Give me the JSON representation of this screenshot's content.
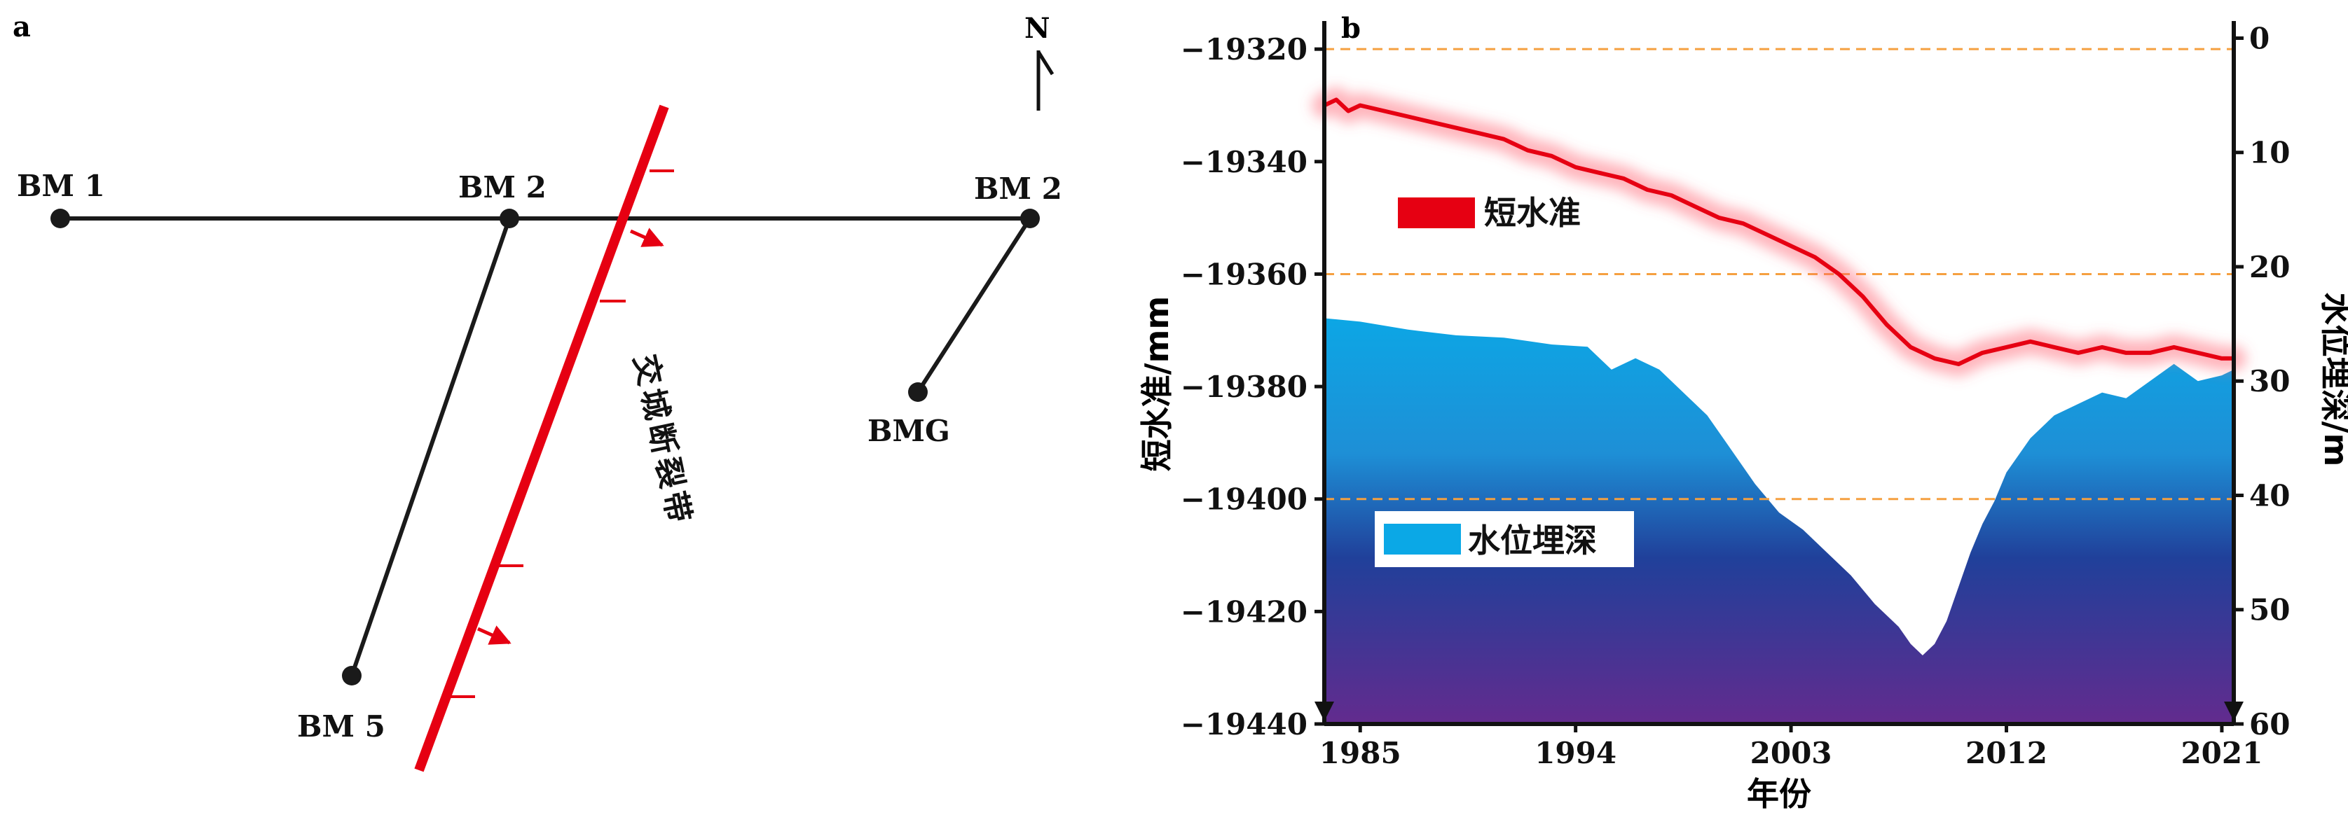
{
  "panel_a": {
    "label": "a",
    "north_label": "N",
    "points": [
      {
        "label": "BM 1"
      },
      {
        "label": "BM 2"
      },
      {
        "label": "BM 2"
      },
      {
        "label": "BMG"
      },
      {
        "label": "BM 5"
      }
    ],
    "fault_label": "交城断裂带",
    "fault_color": "#e60012"
  },
  "chart_data": {
    "type": "area",
    "panel_label": "b",
    "xlabel": "年份",
    "ylabel_left": "短水准/mm",
    "ylabel_right": "水位埋深/m",
    "x_ticks": [
      "1985",
      "1994",
      "2003",
      "2012",
      "2021"
    ],
    "xlim": [
      1983.5,
      1985,
      2021,
      2021.5
    ],
    "left_ylim": [
      -19440,
      -19315
    ],
    "left_ticks": [
      "-19320",
      "-19340",
      "-19360",
      "-19380",
      "-19400",
      "-19420",
      "-19440"
    ],
    "right_ylim": [
      60,
      -1.5
    ],
    "right_ticks": [
      "0",
      "10",
      "20",
      "30",
      "40",
      "50",
      "60"
    ],
    "right_axis_inverted": true,
    "grid_lines_left": [
      -19320,
      -19360,
      -19400
    ],
    "grid_color": "#f5a040",
    "series": [
      {
        "name": "短水准",
        "axis": "left",
        "color": "#e60012",
        "x": [
          1983.5,
          1984.0,
          1984.5,
          1985.0,
          1986.0,
          1987.0,
          1988.0,
          1989.0,
          1990.0,
          1991.0,
          1992.0,
          1993.0,
          1994.0,
          1995.0,
          1996.0,
          1997.0,
          1998.0,
          1999.0,
          2000.0,
          2001.0,
          2002.0,
          2003.0,
          2004.0,
          2005.0,
          2006.0,
          2007.0,
          2008.0,
          2009.0,
          2010.0,
          2011.0,
          2012.0,
          2013.0,
          2014.0,
          2015.0,
          2016.0,
          2017.0,
          2018.0,
          2019.0,
          2020.0,
          2021.0,
          2021.5
        ],
        "values": [
          -19330,
          -19329,
          -19331,
          -19330,
          -19331,
          -19332,
          -19333,
          -19334,
          -19335,
          -19336,
          -19338,
          -19339,
          -19341,
          -19342,
          -19343,
          -19345,
          -19346,
          -19348,
          -19350,
          -19351,
          -19353,
          -19355,
          -19357,
          -19360,
          -19364,
          -19369,
          -19373,
          -19375,
          -19376,
          -19374,
          -19373,
          -19372,
          -19373,
          -19374,
          -19373,
          -19374,
          -19374,
          -19373,
          -19374,
          -19375,
          -19375
        ]
      },
      {
        "name": "水位埋深",
        "axis": "right",
        "color_top": "#0ba8e6",
        "color_bottom": "#632b8e",
        "x": [
          1983.5,
          1985.0,
          1987.0,
          1989.0,
          1991.0,
          1993.0,
          1994.5,
          1995.5,
          1996.5,
          1997.5,
          1998.5,
          1999.5,
          2000.5,
          2001.5,
          2002.5,
          2003.5,
          2004.5,
          2005.5,
          2006.5,
          2007.5,
          2008.0,
          2008.5,
          2009.0,
          2009.5,
          2010.0,
          2010.5,
          2011.0,
          2011.5,
          2012.0,
          2013.0,
          2014.0,
          2015.0,
          2016.0,
          2017.0,
          2018.0,
          2019.0,
          2020.0,
          2021.0,
          2021.5
        ],
        "values": [
          24.5,
          24.8,
          25.5,
          26.0,
          26.2,
          26.8,
          27.0,
          29.0,
          28.0,
          29.0,
          31.0,
          33.0,
          36.0,
          39.0,
          41.5,
          43.0,
          45.0,
          47.0,
          49.5,
          51.5,
          53.0,
          54.0,
          53.0,
          51.0,
          48.0,
          45.0,
          42.5,
          40.5,
          38.0,
          35.0,
          33.0,
          32.0,
          31.0,
          31.5,
          30.0,
          28.5,
          30.0,
          29.5,
          29.0
        ]
      }
    ],
    "legend": [
      {
        "label": "短水准"
      },
      {
        "label": "水位埋深"
      }
    ]
  }
}
